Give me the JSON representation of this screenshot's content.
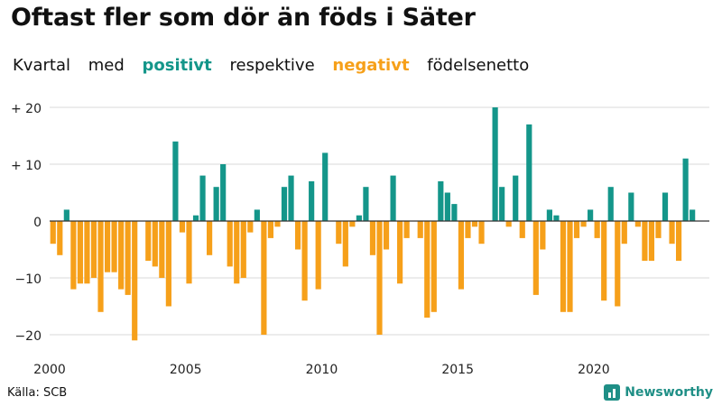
{
  "header": {
    "title": "Oftast fler som dör än föds i Säter",
    "subtitle_words": [
      "Kvartal",
      "med",
      "positivt",
      "respektive",
      "negativt",
      "födelsenetto"
    ]
  },
  "footer": {
    "source": "Källa: SCB",
    "brand": "Newsworthy"
  },
  "colors": {
    "positive": "#14968a",
    "negative": "#f6a01a",
    "grid": "#d9d9d9",
    "axis": "#333333"
  },
  "chart_data": {
    "type": "bar",
    "title": "Oftast fler som dör än föds i Säter",
    "subtitle": "Kvartal med positivt respektive negativt födelsenetto",
    "xlabel": "",
    "ylabel": "",
    "ylim": [
      -22,
      21
    ],
    "xlim": [
      2000,
      2024.25
    ],
    "yticks": [
      {
        "value": 20,
        "label": "+ 20"
      },
      {
        "value": 10,
        "label": "+ 10"
      },
      {
        "value": 0,
        "label": "0"
      },
      {
        "value": -10,
        "label": "−10"
      },
      {
        "value": -20,
        "label": "−20"
      }
    ],
    "xticks": [
      {
        "value": 2000,
        "label": "2000"
      },
      {
        "value": 2005,
        "label": "2005"
      },
      {
        "value": 2010,
        "label": "2010"
      },
      {
        "value": 2015,
        "label": "2015"
      },
      {
        "value": 2020,
        "label": "2020"
      }
    ],
    "start_year": 2000,
    "quarters_per_year": 4,
    "values": [
      -4,
      -6,
      2,
      -12,
      -11,
      -11,
      -10,
      -16,
      -9,
      -9,
      -12,
      -13,
      -21,
      0,
      -7,
      -8,
      -10,
      -15,
      14,
      -2,
      -11,
      1,
      8,
      -6,
      6,
      10,
      -8,
      -11,
      -10,
      -2,
      2,
      -20,
      -3,
      -1,
      6,
      8,
      -5,
      -14,
      7,
      -12,
      12,
      0,
      -4,
      -8,
      -1,
      1,
      6,
      -6,
      -20,
      -5,
      8,
      -11,
      -3,
      0,
      -3,
      -17,
      -16,
      7,
      5,
      3,
      -12,
      -3,
      -1,
      -4,
      0,
      20,
      6,
      -1,
      8,
      -3,
      17,
      -13,
      -5,
      2,
      1,
      -16,
      -16,
      -3,
      -1,
      2,
      -3,
      -14,
      6,
      -15,
      -4,
      5,
      -1,
      -7,
      -7,
      -3,
      5,
      -4,
      -7,
      11,
      2
    ]
  }
}
